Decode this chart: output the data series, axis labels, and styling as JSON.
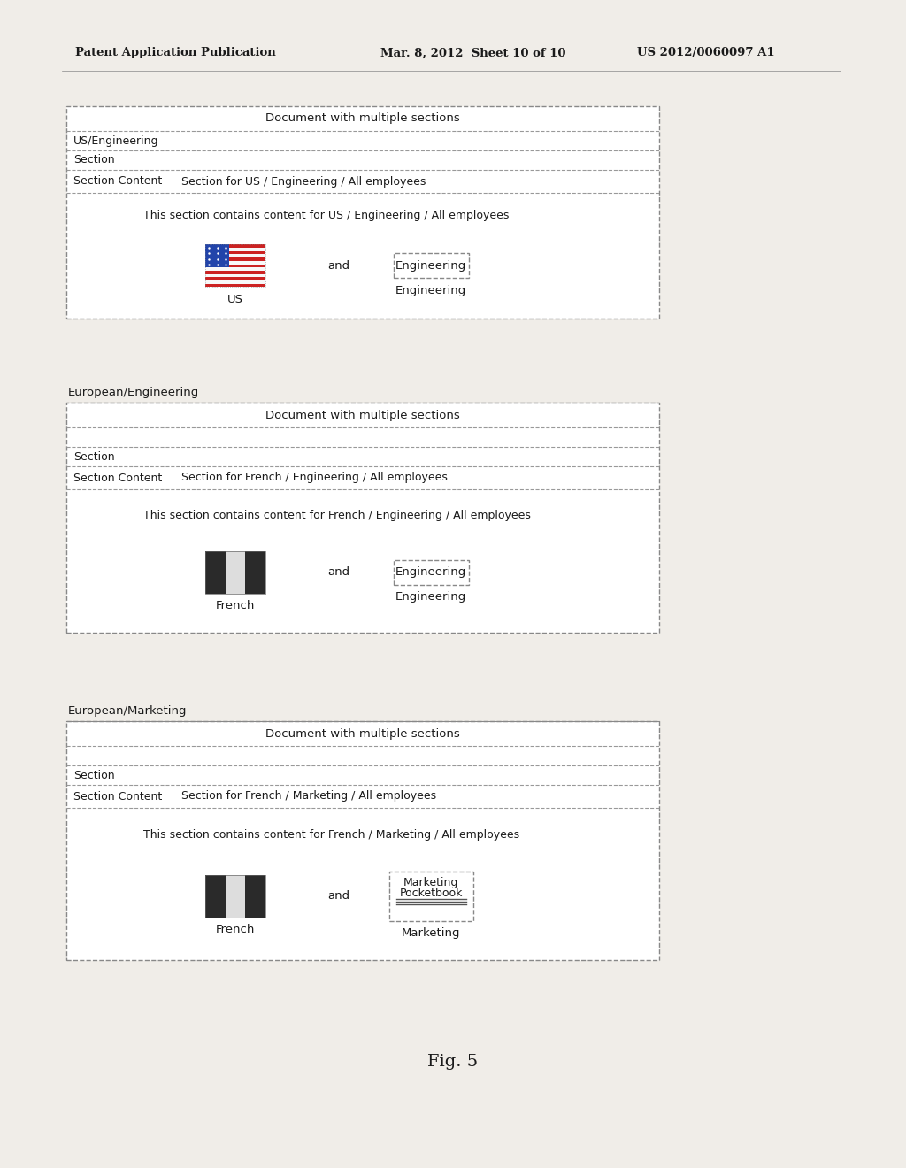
{
  "bg_color": "#f0ede8",
  "header_text_left": "Patent Application Publication",
  "header_text_mid": "Mar. 8, 2012  Sheet 10 of 10",
  "header_text_right": "US 2012/0060097 A1",
  "fig_label": "Fig. 5",
  "panels": [
    {
      "label": "",
      "title": "Document with multiple sections",
      "row1": "US/Engineering",
      "row2": "Section",
      "row3_left": "Section Content",
      "row3_right": "Section for US / Engineering / All employees",
      "content_line": "This section contains content for US / Engineering / All employees",
      "flag_type": "us",
      "flag_label": "US",
      "box_label_line1": "Engineering",
      "box_label_line2": "",
      "right_label": "Engineering",
      "has_separator": false
    },
    {
      "label": "European/Engineering",
      "title": "Document with multiple sections",
      "row1": "",
      "row2": "Section",
      "row3_left": "Section Content",
      "row3_right": "Section for French / Engineering / All employees",
      "content_line": "This section contains content for French / Engineering / All employees",
      "flag_type": "french",
      "flag_label": "French",
      "box_label_line1": "Engineering",
      "box_label_line2": "",
      "right_label": "Engineering",
      "has_separator": false
    },
    {
      "label": "European/Marketing",
      "title": "Document with multiple sections",
      "row1": "",
      "row2": "Section",
      "row3_left": "Section Content",
      "row3_right": "Section for French / Marketing / All employees",
      "content_line": "This section contains content for French / Marketing / All employees",
      "flag_type": "french",
      "flag_label": "French",
      "box_label_line1": "Marketing",
      "box_label_line2": "Pocketbook",
      "right_label": "Marketing",
      "has_separator": true
    }
  ]
}
